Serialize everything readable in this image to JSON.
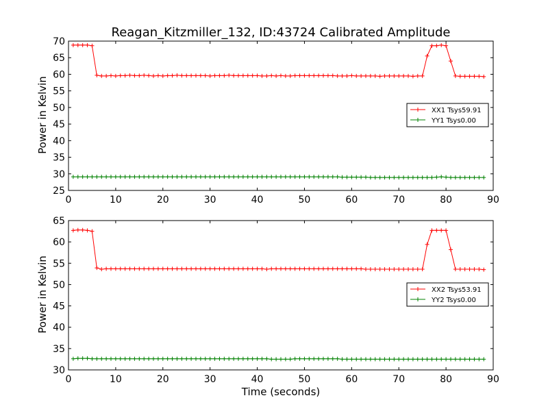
{
  "chart_data": [
    {
      "type": "line",
      "title": "Reagan_Kitzmiller_132, ID:43724 Calibrated Amplitude",
      "xlabel": "",
      "ylabel": "Power in Kelvin",
      "xlim": [
        0,
        90
      ],
      "ylim": [
        25,
        70
      ],
      "xticks": [
        0,
        10,
        20,
        30,
        40,
        50,
        60,
        70,
        80,
        90
      ],
      "yticks": [
        25,
        30,
        35,
        40,
        45,
        50,
        55,
        60,
        65,
        70
      ],
      "legend_position": "center-right",
      "x": [
        1,
        2,
        3,
        4,
        5,
        6,
        7,
        8,
        9,
        10,
        11,
        12,
        13,
        14,
        15,
        16,
        17,
        18,
        19,
        20,
        21,
        22,
        23,
        24,
        25,
        26,
        27,
        28,
        29,
        30,
        31,
        32,
        33,
        34,
        35,
        36,
        37,
        38,
        39,
        40,
        41,
        42,
        43,
        44,
        45,
        46,
        47,
        48,
        49,
        50,
        51,
        52,
        53,
        54,
        55,
        56,
        57,
        58,
        59,
        60,
        61,
        62,
        63,
        64,
        65,
        66,
        67,
        68,
        69,
        70,
        71,
        72,
        73,
        74,
        75,
        76,
        77,
        78,
        79,
        80,
        81,
        82,
        83,
        84,
        85,
        86,
        87,
        88
      ],
      "series": [
        {
          "name": "XX1 Tsys59.91",
          "color": "#ff0000",
          "values": [
            68.8,
            68.8,
            68.8,
            68.8,
            68.6,
            59.7,
            59.5,
            59.5,
            59.6,
            59.5,
            59.6,
            59.6,
            59.7,
            59.6,
            59.6,
            59.7,
            59.6,
            59.5,
            59.6,
            59.5,
            59.6,
            59.6,
            59.7,
            59.6,
            59.6,
            59.6,
            59.6,
            59.6,
            59.6,
            59.5,
            59.6,
            59.6,
            59.6,
            59.7,
            59.6,
            59.6,
            59.6,
            59.6,
            59.6,
            59.6,
            59.5,
            59.5,
            59.6,
            59.5,
            59.6,
            59.5,
            59.5,
            59.6,
            59.6,
            59.6,
            59.6,
            59.6,
            59.6,
            59.6,
            59.6,
            59.6,
            59.5,
            59.5,
            59.5,
            59.6,
            59.5,
            59.5,
            59.5,
            59.5,
            59.5,
            59.4,
            59.5,
            59.5,
            59.5,
            59.5,
            59.5,
            59.5,
            59.4,
            59.5,
            59.5,
            65.5,
            68.6,
            68.6,
            68.8,
            68.6,
            64.0,
            59.5,
            59.4,
            59.4,
            59.4,
            59.4,
            59.4,
            59.3
          ]
        },
        {
          "name": "YY1 Tsys0.00",
          "color": "#008000",
          "values": [
            29.1,
            29.1,
            29.1,
            29.1,
            29.1,
            29.1,
            29.1,
            29.1,
            29.1,
            29.1,
            29.1,
            29.1,
            29.1,
            29.1,
            29.1,
            29.1,
            29.1,
            29.1,
            29.1,
            29.1,
            29.1,
            29.1,
            29.1,
            29.1,
            29.1,
            29.1,
            29.1,
            29.1,
            29.1,
            29.1,
            29.1,
            29.1,
            29.1,
            29.1,
            29.1,
            29.1,
            29.1,
            29.1,
            29.1,
            29.1,
            29.1,
            29.1,
            29.1,
            29.1,
            29.1,
            29.1,
            29.1,
            29.1,
            29.1,
            29.1,
            29.1,
            29.1,
            29.1,
            29.1,
            29.1,
            29.1,
            29.1,
            29.0,
            29.0,
            29.0,
            29.0,
            29.0,
            29.0,
            28.9,
            28.9,
            28.9,
            28.9,
            28.9,
            28.9,
            28.9,
            28.9,
            28.9,
            28.9,
            28.9,
            28.9,
            28.9,
            28.9,
            29.0,
            29.1,
            29.0,
            28.9,
            28.9,
            28.9,
            28.9,
            28.9,
            28.9,
            28.9,
            28.9
          ]
        }
      ]
    },
    {
      "type": "line",
      "title": "",
      "xlabel": "Time (seconds)",
      "ylabel": "Power in Kelvin",
      "xlim": [
        0,
        90
      ],
      "ylim": [
        30,
        65
      ],
      "xticks": [
        0,
        10,
        20,
        30,
        40,
        50,
        60,
        70,
        80,
        90
      ],
      "yticks": [
        30,
        35,
        40,
        45,
        50,
        55,
        60,
        65
      ],
      "legend_position": "center-right",
      "x": [
        1,
        2,
        3,
        4,
        5,
        6,
        7,
        8,
        9,
        10,
        11,
        12,
        13,
        14,
        15,
        16,
        17,
        18,
        19,
        20,
        21,
        22,
        23,
        24,
        25,
        26,
        27,
        28,
        29,
        30,
        31,
        32,
        33,
        34,
        35,
        36,
        37,
        38,
        39,
        40,
        41,
        42,
        43,
        44,
        45,
        46,
        47,
        48,
        49,
        50,
        51,
        52,
        53,
        54,
        55,
        56,
        57,
        58,
        59,
        60,
        61,
        62,
        63,
        64,
        65,
        66,
        67,
        68,
        69,
        70,
        71,
        72,
        73,
        74,
        75,
        76,
        77,
        78,
        79,
        80,
        81,
        82,
        83,
        84,
        85,
        86,
        87,
        88
      ],
      "series": [
        {
          "name": "XX2 Tsys53.91",
          "color": "#ff0000",
          "values": [
            62.7,
            62.8,
            62.8,
            62.7,
            62.5,
            53.9,
            53.6,
            53.7,
            53.7,
            53.7,
            53.7,
            53.7,
            53.7,
            53.7,
            53.7,
            53.7,
            53.7,
            53.7,
            53.7,
            53.7,
            53.7,
            53.7,
            53.7,
            53.7,
            53.7,
            53.7,
            53.7,
            53.7,
            53.7,
            53.7,
            53.7,
            53.7,
            53.7,
            53.7,
            53.7,
            53.7,
            53.7,
            53.7,
            53.7,
            53.7,
            53.7,
            53.6,
            53.7,
            53.7,
            53.7,
            53.7,
            53.7,
            53.7,
            53.7,
            53.7,
            53.7,
            53.7,
            53.7,
            53.7,
            53.7,
            53.7,
            53.7,
            53.7,
            53.7,
            53.7,
            53.7,
            53.7,
            53.6,
            53.6,
            53.6,
            53.6,
            53.6,
            53.6,
            53.6,
            53.6,
            53.6,
            53.6,
            53.6,
            53.6,
            53.6,
            59.4,
            62.7,
            62.7,
            62.7,
            62.7,
            58.2,
            53.6,
            53.6,
            53.6,
            53.6,
            53.6,
            53.6,
            53.5
          ]
        },
        {
          "name": "YY2 Tsys0.00",
          "color": "#008000",
          "values": [
            32.6,
            32.7,
            32.7,
            32.7,
            32.6,
            32.6,
            32.6,
            32.6,
            32.6,
            32.6,
            32.6,
            32.6,
            32.6,
            32.6,
            32.6,
            32.6,
            32.6,
            32.6,
            32.6,
            32.6,
            32.6,
            32.6,
            32.6,
            32.6,
            32.6,
            32.6,
            32.6,
            32.6,
            32.6,
            32.6,
            32.6,
            32.6,
            32.6,
            32.6,
            32.6,
            32.6,
            32.6,
            32.6,
            32.6,
            32.6,
            32.6,
            32.6,
            32.5,
            32.5,
            32.5,
            32.5,
            32.5,
            32.6,
            32.6,
            32.6,
            32.6,
            32.6,
            32.6,
            32.6,
            32.6,
            32.6,
            32.6,
            32.5,
            32.5,
            32.5,
            32.5,
            32.5,
            32.5,
            32.5,
            32.5,
            32.5,
            32.5,
            32.5,
            32.5,
            32.5,
            32.5,
            32.5,
            32.5,
            32.5,
            32.5,
            32.5,
            32.5,
            32.5,
            32.5,
            32.5,
            32.5,
            32.5,
            32.5,
            32.5,
            32.5,
            32.5,
            32.5,
            32.5
          ]
        }
      ]
    }
  ]
}
